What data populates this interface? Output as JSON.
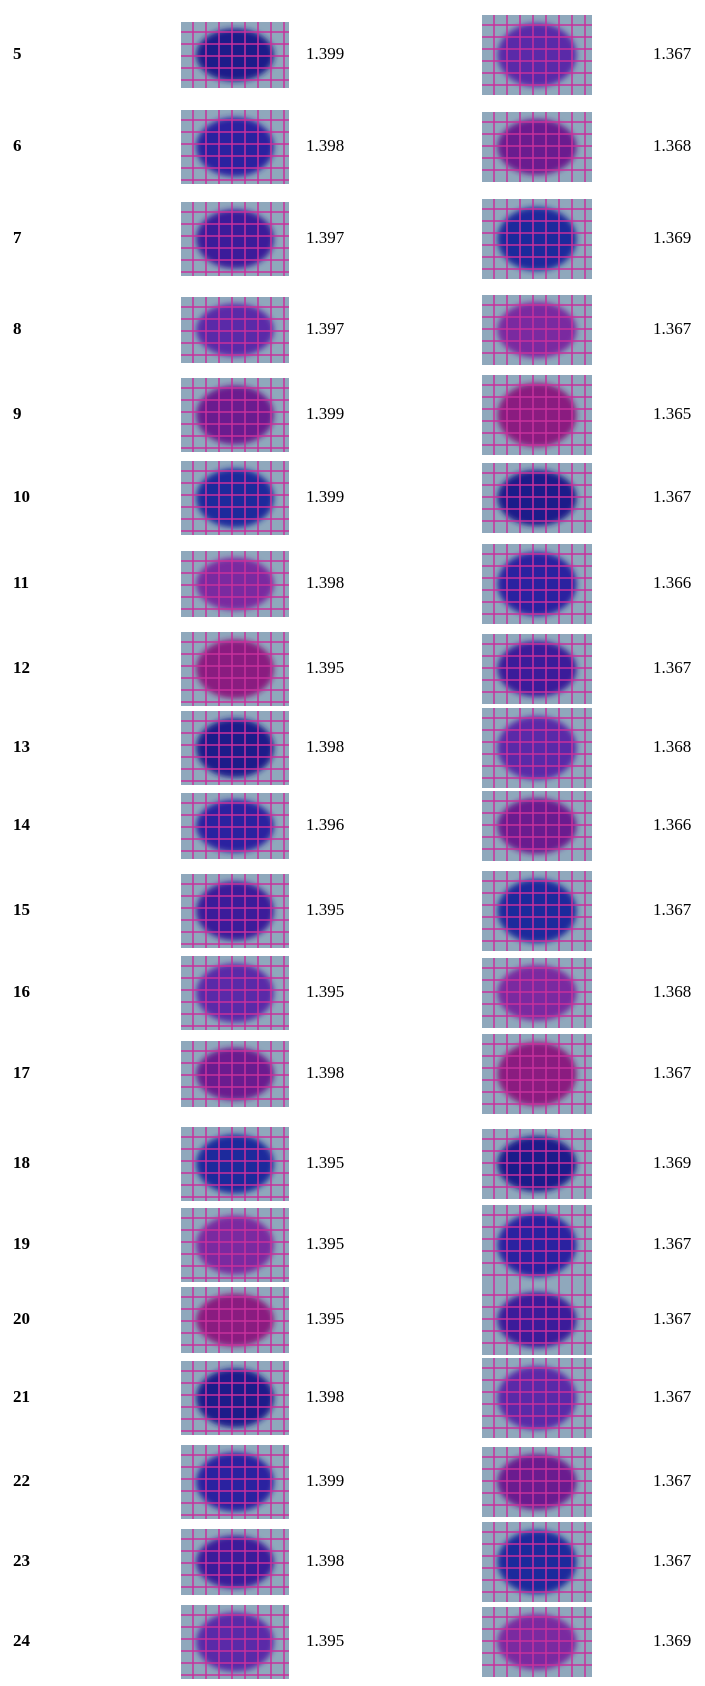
{
  "rows": [
    [
      5,
      1.399,
      1.367
    ],
    [
      6,
      1.398,
      1.368
    ],
    [
      7,
      1.397,
      1.369
    ],
    [
      8,
      1.397,
      1.367
    ],
    [
      9,
      1.399,
      1.365
    ],
    [
      10,
      1.399,
      1.367
    ],
    [
      11,
      1.398,
      1.366
    ],
    [
      12,
      1.395,
      1.367
    ],
    [
      13,
      1.398,
      1.368
    ],
    [
      14,
      1.396,
      1.366
    ],
    [
      15,
      1.395,
      1.367
    ],
    [
      16,
      1.395,
      1.368
    ],
    [
      17,
      1.398,
      1.367
    ],
    [
      18,
      1.395,
      1.369
    ],
    [
      19,
      1.395,
      1.367
    ],
    [
      20,
      1.395,
      1.367
    ],
    [
      21,
      1.398,
      1.367
    ],
    [
      22,
      1.399,
      1.367
    ],
    [
      23,
      1.398,
      1.367
    ],
    [
      24,
      1.395,
      1.369
    ]
  ]
}
